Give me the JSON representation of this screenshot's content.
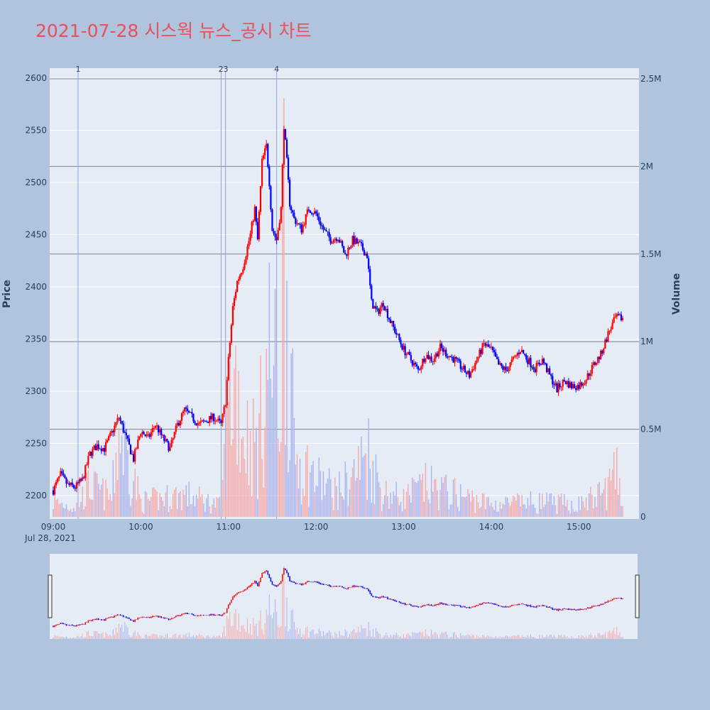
{
  "title": "2021-07-28 시스웍 뉴스_공시 차트",
  "colors": {
    "up": "#ff0000",
    "down": "#0000ff",
    "background": "#b0c4de",
    "plot_bg": "#e5ecf6",
    "title": "#e8505b"
  },
  "chart_data": {
    "type": "candlestick",
    "title": "2021-07-28 시스웍 뉴스_공시 차트",
    "date_label": "Jul 28, 2021",
    "ylabel": "Price",
    "y2label": "Volume",
    "ylim": [
      2180,
      2605
    ],
    "y2lim": [
      0,
      2550000
    ],
    "xlim": [
      "09:00",
      "15:30"
    ],
    "price_ticks": [
      2200,
      2250,
      2300,
      2350,
      2400,
      2450,
      2500,
      2550,
      2600
    ],
    "volume_ticks": [
      {
        "value": 0,
        "label": "0"
      },
      {
        "value": 500000,
        "label": "0.5M"
      },
      {
        "value": 1000000,
        "label": "1M"
      },
      {
        "value": 1500000,
        "label": "1.5M"
      },
      {
        "value": 2000000,
        "label": "2M"
      },
      {
        "value": 2500000,
        "label": "2.5M"
      }
    ],
    "time_ticks": [
      "09:00",
      "10:00",
      "11:00",
      "12:00",
      "13:00",
      "14:00",
      "15:00"
    ],
    "news_markers": [
      {
        "label": "1",
        "time": "09:17"
      },
      {
        "label": "2",
        "time": "10:55"
      },
      {
        "label": "3",
        "time": "10:58"
      },
      {
        "label": "4",
        "time": "11:33"
      }
    ],
    "price_path": [
      [
        "09:00",
        2205
      ],
      [
        "09:05",
        2220
      ],
      [
        "09:10",
        2210
      ],
      [
        "09:15",
        2208
      ],
      [
        "09:20",
        2215
      ],
      [
        "09:25",
        2240
      ],
      [
        "09:30",
        2248
      ],
      [
        "09:35",
        2245
      ],
      [
        "09:40",
        2260
      ],
      [
        "09:45",
        2275
      ],
      [
        "09:50",
        2255
      ],
      [
        "09:55",
        2235
      ],
      [
        "10:00",
        2262
      ],
      [
        "10:05",
        2255
      ],
      [
        "10:10",
        2268
      ],
      [
        "10:15",
        2255
      ],
      [
        "10:20",
        2245
      ],
      [
        "10:25",
        2268
      ],
      [
        "10:30",
        2282
      ],
      [
        "10:35",
        2275
      ],
      [
        "10:40",
        2268
      ],
      [
        "10:45",
        2272
      ],
      [
        "10:50",
        2275
      ],
      [
        "10:55",
        2268
      ],
      [
        "10:58",
        2290
      ],
      [
        "11:00",
        2330
      ],
      [
        "11:03",
        2380
      ],
      [
        "11:06",
        2405
      ],
      [
        "11:10",
        2420
      ],
      [
        "11:15",
        2450
      ],
      [
        "11:18",
        2475
      ],
      [
        "11:20",
        2445
      ],
      [
        "11:23",
        2520
      ],
      [
        "11:26",
        2535
      ],
      [
        "11:28",
        2500
      ],
      [
        "11:30",
        2455
      ],
      [
        "11:33",
        2445
      ],
      [
        "11:36",
        2475
      ],
      [
        "11:38",
        2555
      ],
      [
        "11:40",
        2520
      ],
      [
        "11:42",
        2480
      ],
      [
        "11:45",
        2465
      ],
      [
        "11:50",
        2455
      ],
      [
        "11:55",
        2475
      ],
      [
        "12:00",
        2470
      ],
      [
        "12:05",
        2455
      ],
      [
        "12:10",
        2445
      ],
      [
        "12:15",
        2448
      ],
      [
        "12:20",
        2430
      ],
      [
        "12:25",
        2445
      ],
      [
        "12:30",
        2440
      ],
      [
        "12:35",
        2430
      ],
      [
        "12:38",
        2385
      ],
      [
        "12:42",
        2375
      ],
      [
        "12:46",
        2385
      ],
      [
        "12:50",
        2370
      ],
      [
        "12:55",
        2355
      ],
      [
        "13:00",
        2340
      ],
      [
        "13:05",
        2330
      ],
      [
        "13:10",
        2320
      ],
      [
        "13:15",
        2335
      ],
      [
        "13:20",
        2330
      ],
      [
        "13:25",
        2342
      ],
      [
        "13:30",
        2335
      ],
      [
        "13:35",
        2330
      ],
      [
        "13:40",
        2322
      ],
      [
        "13:45",
        2315
      ],
      [
        "13:50",
        2330
      ],
      [
        "13:55",
        2345
      ],
      [
        "14:00",
        2340
      ],
      [
        "14:05",
        2325
      ],
      [
        "14:10",
        2320
      ],
      [
        "14:15",
        2330
      ],
      [
        "14:20",
        2340
      ],
      [
        "14:25",
        2330
      ],
      [
        "14:30",
        2322
      ],
      [
        "14:35",
        2330
      ],
      [
        "14:40",
        2315
      ],
      [
        "14:45",
        2302
      ],
      [
        "14:50",
        2310
      ],
      [
        "14:55",
        2305
      ],
      [
        "15:00",
        2305
      ],
      [
        "15:05",
        2312
      ],
      [
        "15:10",
        2325
      ],
      [
        "15:15",
        2335
      ],
      [
        "15:20",
        2355
      ],
      [
        "15:25",
        2370
      ]
    ],
    "volume_path": [
      [
        "09:00",
        120000
      ],
      [
        "09:15",
        80000
      ],
      [
        "09:25",
        250000
      ],
      [
        "09:40",
        150000
      ],
      [
        "09:45",
        700000
      ],
      [
        "10:00",
        120000
      ],
      [
        "10:30",
        180000
      ],
      [
        "10:55",
        90000
      ],
      [
        "11:00",
        850000
      ],
      [
        "11:05",
        1150000
      ],
      [
        "11:10",
        700000
      ],
      [
        "11:20",
        550000
      ],
      [
        "11:28",
        1350000
      ],
      [
        "11:35",
        900000
      ],
      [
        "11:38",
        2400000
      ],
      [
        "11:45",
        500000
      ],
      [
        "12:00",
        300000
      ],
      [
        "12:15",
        200000
      ],
      [
        "12:30",
        400000
      ],
      [
        "12:35",
        550000
      ],
      [
        "12:45",
        200000
      ],
      [
        "13:00",
        150000
      ],
      [
        "13:15",
        250000
      ],
      [
        "13:30",
        200000
      ],
      [
        "14:00",
        100000
      ],
      [
        "14:30",
        120000
      ],
      [
        "15:00",
        100000
      ],
      [
        "15:15",
        180000
      ],
      [
        "15:25",
        320000
      ]
    ]
  }
}
